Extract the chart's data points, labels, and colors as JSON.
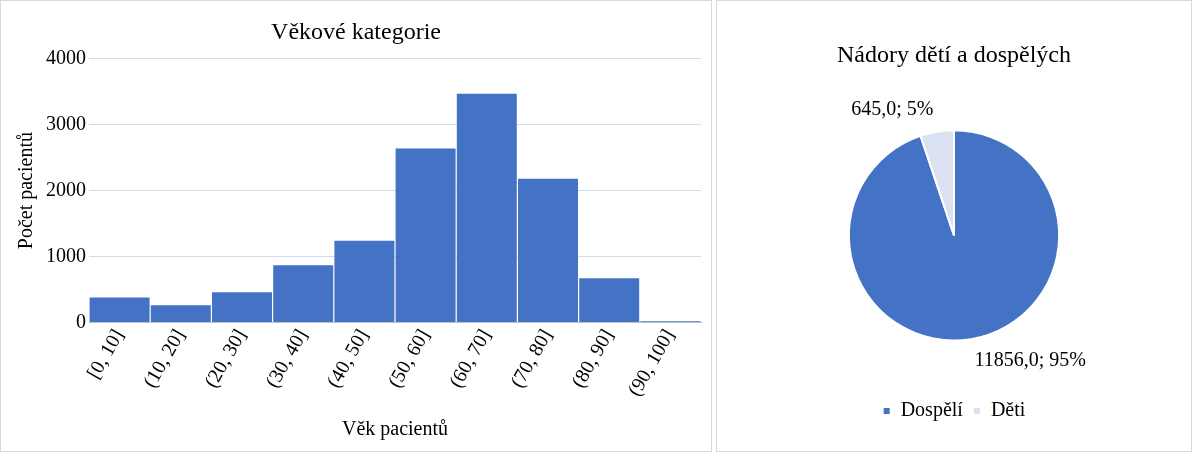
{
  "chart_data": [
    {
      "type": "bar",
      "title": "Věkové kategorie",
      "xlabel": "Věk pacientů",
      "ylabel": "Počet pacientů",
      "categories": [
        "[0, 10]",
        "(10, 20]",
        "(20, 30]",
        "(30, 40]",
        "(40, 50]",
        "(50, 60]",
        "(60, 70]",
        "(70, 80]",
        "(80, 90]",
        "(90, 100]"
      ],
      "values": [
        380,
        260,
        460,
        870,
        1240,
        2640,
        3470,
        2180,
        670,
        20
      ],
      "color": "#4472c4",
      "ylim": [
        0,
        4000
      ],
      "yticks": [
        0,
        1000,
        2000,
        3000,
        4000
      ],
      "grid": "y",
      "legend": false
    },
    {
      "type": "pie",
      "title": "Nádory dětí a dospělých",
      "categories": [
        "Dospělí",
        "Děti"
      ],
      "values": [
        11856,
        645
      ],
      "colors": [
        "#4472c4",
        "#d9e1f2"
      ],
      "value_labels": [
        "11856,0; 95%",
        "645,0; 5%"
      ],
      "legend": "bottom"
    }
  ]
}
